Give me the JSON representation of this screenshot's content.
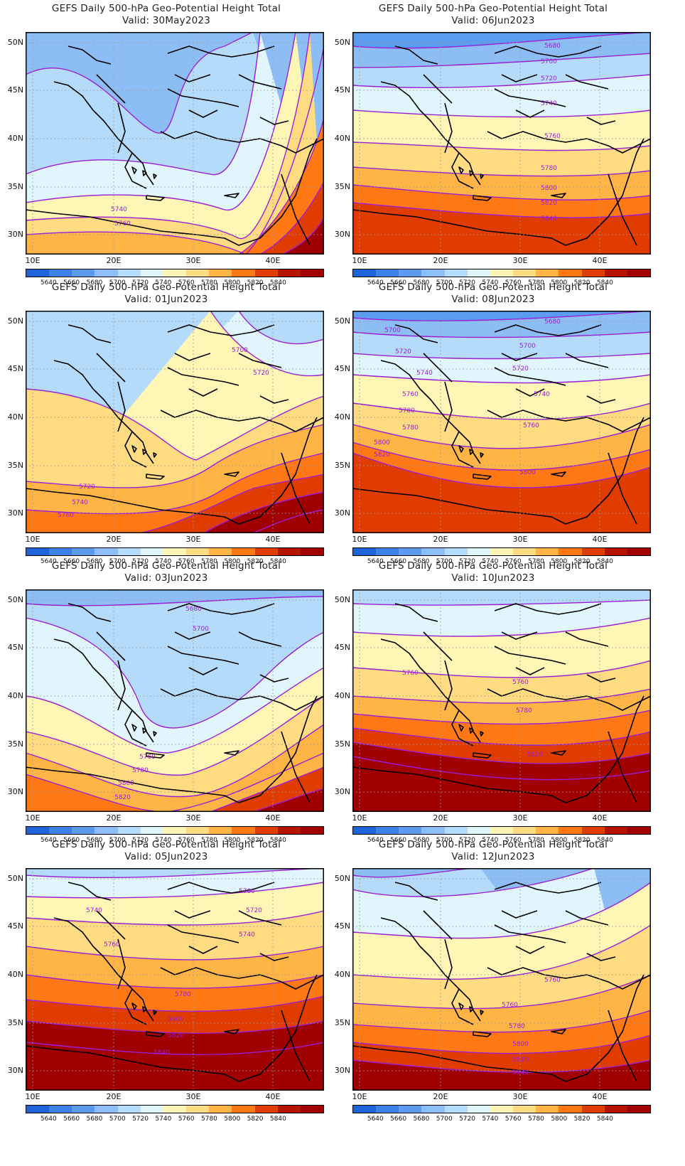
{
  "panels": [
    {
      "id": "p1",
      "title": "GEFS Daily 500-hPa Geo-Potential Height Total",
      "valid": "Valid: 30May2023",
      "labels": [
        "5740",
        "5760"
      ]
    },
    {
      "id": "p2",
      "title": "GEFS Daily 500-hPa Geo-Potential Height Total",
      "valid": "Valid: 06Jun2023",
      "labels": [
        "5680",
        "5700",
        "5720",
        "5740",
        "5760",
        "5780",
        "5800",
        "5820",
        "5840"
      ]
    },
    {
      "id": "p3",
      "title": "GEFS Daily 500-hPa Geo-Potential Height Total",
      "valid": "Valid: 01Jun2023",
      "labels": [
        "5700",
        "5720",
        "5720",
        "5740",
        "5760"
      ]
    },
    {
      "id": "p4",
      "title": "GEFS Daily 500-hPa Geo-Potential Height Total",
      "valid": "Valid: 08Jun2023",
      "labels": [
        "5680",
        "5700",
        "5700",
        "5720",
        "5720",
        "5740",
        "5740",
        "5760",
        "5760",
        "5780",
        "5780",
        "5800",
        "5800",
        "5820"
      ]
    },
    {
      "id": "p5",
      "title": "GEFS Daily 500-hPa Geo-Potential Height Total",
      "valid": "Valid: 03Jun2023",
      "labels": [
        "5680",
        "5700",
        "5760",
        "5780",
        "5800",
        "5820"
      ]
    },
    {
      "id": "p6",
      "title": "GEFS Daily 500-hPa Geo-Potential Height Total",
      "valid": "Valid: 10Jun2023",
      "labels": [
        "5760",
        "5760",
        "5780",
        "5820"
      ]
    },
    {
      "id": "p7",
      "title": "GEFS Daily 500-hPa Geo-Potential Height Total",
      "valid": "Valid: 05Jun2023",
      "labels": [
        "5700",
        "5720",
        "5740",
        "5740",
        "5760",
        "5780",
        "5800",
        "5820",
        "5840"
      ]
    },
    {
      "id": "p8",
      "title": "GEFS Daily 500-hPa Geo-Potential Height Total",
      "valid": "Valid: 12Jun2023",
      "labels": [
        "5760",
        "5760",
        "5780",
        "5800",
        "5820",
        "5840"
      ]
    }
  ],
  "lat_labels": [
    "50N",
    "45N",
    "40N",
    "35N",
    "30N"
  ],
  "lon_labels": [
    "10E",
    "20E",
    "30E",
    "40E"
  ],
  "colorbar": {
    "labels": [
      "5640",
      "5660",
      "5680",
      "5700",
      "5720",
      "5740",
      "5760",
      "5780",
      "5800",
      "5820",
      "5840"
    ],
    "colors": [
      "#1e64dc",
      "#3c82e6",
      "#5a9cf0",
      "#8cbef5",
      "#b4dcfa",
      "#e1f5fc",
      "#fff5b4",
      "#ffdc82",
      "#ffb446",
      "#ff7814",
      "#e13c00",
      "#b41400",
      "#a00000"
    ]
  },
  "fill_colors": {
    "c5660": "#3c82e6",
    "c5680": "#5a9cf0",
    "c5700": "#8cbef5",
    "c5720": "#b4dcfa",
    "c5740": "#e1f5fc",
    "c5760": "#fff5b4",
    "c5780": "#ffdc82",
    "c5800": "#ffb446",
    "c5820": "#ff7814",
    "c5840": "#e13c00",
    "c5860": "#a00000"
  },
  "contour_color": "#9b1fd6",
  "label_color": "#9b1fd6"
}
